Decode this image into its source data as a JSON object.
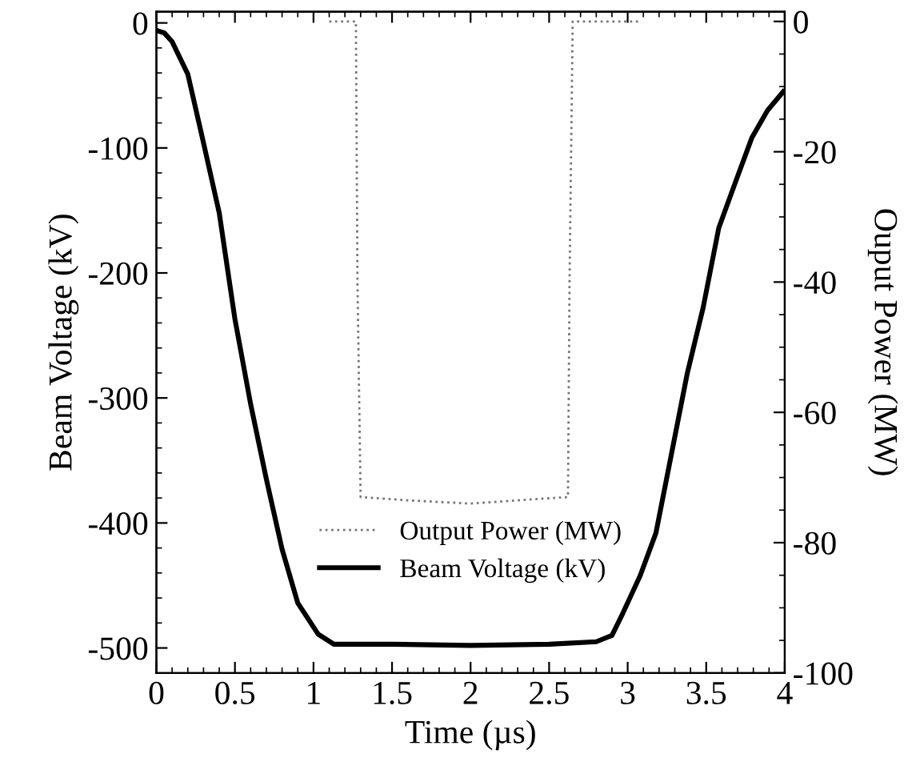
{
  "chart_data": {
    "type": "line",
    "xlabel": "Time (µs)",
    "ylabel": "Beam Voltage (kV)",
    "y2label": "Ouput Power (MW)",
    "xlim": [
      0,
      4
    ],
    "xticks": [
      0,
      0.5,
      1,
      1.5,
      2,
      2.5,
      3,
      3.5,
      4
    ],
    "ylim": [
      -520,
      9
    ],
    "yticks": [
      0,
      -100,
      -200,
      -300,
      -400,
      -500
    ],
    "y2lim": [
      -100,
      1.5
    ],
    "y2ticks": [
      0,
      -20,
      -40,
      -60,
      -80,
      -100
    ],
    "grid": false,
    "legend": "bottom",
    "series": [
      {
        "name": "Output Power (MW)",
        "color": "#777777",
        "axis": "y2",
        "line_style": "dotted",
        "x": [
          1.1,
          1.2,
          1.27,
          1.28,
          1.3,
          1.6,
          2.0,
          2.3,
          2.62,
          2.63,
          2.65,
          2.8,
          3.08
        ],
        "values": [
          0,
          0,
          0,
          -40,
          -73,
          -73.5,
          -74,
          -73.5,
          -73,
          -40,
          0,
          0,
          0
        ]
      },
      {
        "name": "Beam Voltage (kV)",
        "color": "#000000",
        "axis": "y",
        "line_style": "solid",
        "x": [
          0,
          0.05,
          0.1,
          0.2,
          0.3,
          0.4,
          0.5,
          0.6,
          0.7,
          0.8,
          0.9,
          1.03,
          1.13,
          1.5,
          2.0,
          2.5,
          2.8,
          2.9,
          2.97,
          3.08,
          3.18,
          3.28,
          3.38,
          3.48,
          3.58,
          3.69,
          3.79,
          3.89,
          3.99
        ],
        "values": [
          -6,
          -8,
          -15,
          -41,
          -96,
          -152,
          -237,
          -305,
          -365,
          -421,
          -464,
          -489,
          -497,
          -497,
          -498,
          -497,
          -495,
          -490,
          -472,
          -442,
          -408,
          -344,
          -280,
          -228,
          -164,
          -126,
          -92,
          -70,
          -55
        ]
      }
    ]
  }
}
